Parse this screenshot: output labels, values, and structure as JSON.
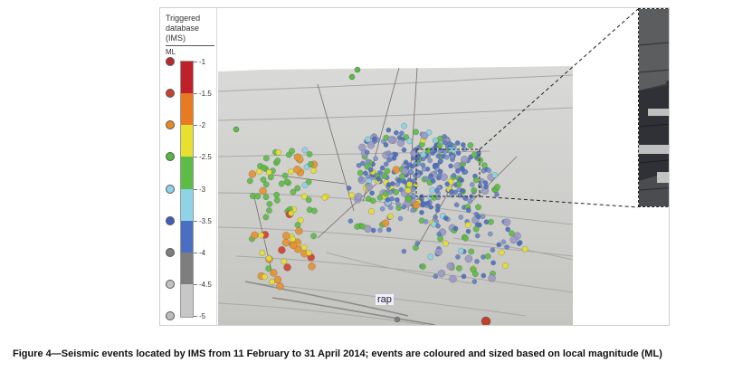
{
  "legend": {
    "title_lines": [
      "Triggered",
      "database",
      "(IMS)"
    ],
    "unit": "ML",
    "ticks": [
      "-1",
      "-1.5",
      "-2",
      "-2.5",
      "-3",
      "-3.5",
      "-4",
      "-4.5",
      "-5"
    ],
    "band_colors": [
      "#c0202a",
      "#e87a22",
      "#e8e030",
      "#5cbc45",
      "#8ed3e6",
      "#4a6fc2",
      "#7e7e7e",
      "#c7c7c7"
    ],
    "dot_colors": [
      "#b8282e",
      "#c8402e",
      "#e88a24",
      "#54b845",
      "#8ed3e6",
      "#3e5eb8",
      "#7e7e7e",
      "#c2c2c2",
      "#bdbdbd"
    ]
  },
  "map": {
    "fragment_label": "rap"
  },
  "caption": "Figure 4—Seismic events located by IMS from 11 February to 31 April 2014; events are coloured and sized based on local magnitude (ML)"
}
